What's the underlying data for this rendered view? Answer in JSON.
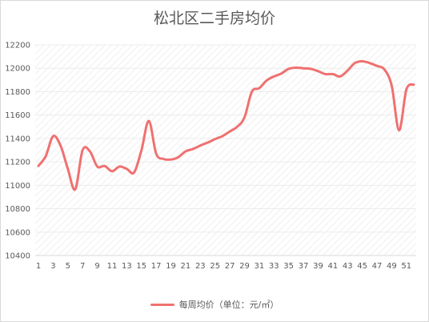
{
  "chart_data": {
    "type": "line",
    "title": "松北区二手房均价",
    "xlabel": "",
    "ylabel": "",
    "ylim": [
      10400,
      12200
    ],
    "yticks": [
      "10400",
      "10600",
      "10800",
      "11000",
      "11200",
      "11400",
      "11600",
      "11800",
      "12000",
      "12200"
    ],
    "xtick_labels": [
      "1",
      "3",
      "5",
      "7",
      "9",
      "11",
      "13",
      "15",
      "17",
      "19",
      "21",
      "23",
      "25",
      "27",
      "29",
      "31",
      "33",
      "35",
      "37",
      "39",
      "41",
      "43",
      "45",
      "47",
      "49",
      "51"
    ],
    "x": [
      1,
      2,
      3,
      4,
      5,
      6,
      7,
      8,
      9,
      10,
      11,
      12,
      13,
      14,
      15,
      16,
      17,
      18,
      19,
      20,
      21,
      22,
      23,
      24,
      25,
      26,
      27,
      28,
      29,
      30,
      31,
      32,
      33,
      34,
      35,
      36,
      37,
      38,
      39,
      40,
      41,
      42,
      43,
      44,
      45,
      46,
      47,
      48,
      49,
      50,
      51,
      52
    ],
    "series": [
      {
        "name": "每周均价（单位：元/㎡）",
        "color": "#f07070",
        "values": [
          11165,
          11250,
          11420,
          11340,
          11140,
          10965,
          11300,
          11290,
          11160,
          11165,
          11120,
          11160,
          11140,
          11110,
          11300,
          11550,
          11270,
          11225,
          11220,
          11240,
          11290,
          11310,
          11340,
          11365,
          11395,
          11420,
          11460,
          11500,
          11580,
          11800,
          11830,
          11895,
          11930,
          11955,
          11995,
          12005,
          12000,
          11995,
          11975,
          11950,
          11950,
          11930,
          11980,
          12045,
          12060,
          12045,
          12020,
          11990,
          11850,
          11470,
          11820,
          11860
        ]
      }
    ],
    "grid": true,
    "legend": "bottom"
  }
}
